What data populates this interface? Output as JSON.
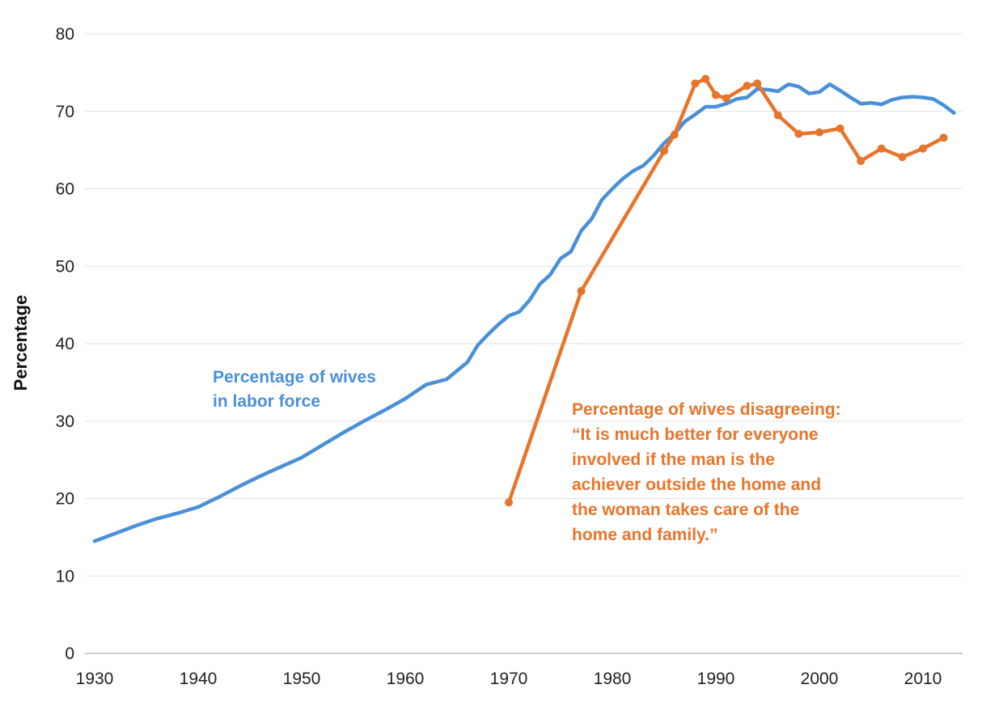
{
  "chart_data": {
    "type": "line",
    "title": "",
    "xlabel": "",
    "ylabel": "Percentage",
    "xlim": [
      1930,
      2013
    ],
    "ylim": [
      0,
      80
    ],
    "x_ticks": [
      1930,
      1940,
      1950,
      1960,
      1970,
      1980,
      1990,
      2000,
      2010
    ],
    "y_ticks": [
      0,
      10,
      20,
      30,
      40,
      50,
      60,
      70,
      80
    ],
    "grid": "horizontal",
    "legend": "none",
    "series": [
      {
        "color": "#4a90d9",
        "markers": false,
        "x": [
          1930,
          1932,
          1934,
          1936,
          1938,
          1940,
          1942,
          1944,
          1946,
          1948,
          1950,
          1952,
          1954,
          1956,
          1958,
          1960,
          1962,
          1964,
          1965,
          1966,
          1967,
          1968,
          1969,
          1970,
          1971,
          1972,
          1973,
          1974,
          1975,
          1976,
          1977,
          1978,
          1979,
          1980,
          1981,
          1982,
          1983,
          1984,
          1985,
          1986,
          1987,
          1988,
          1989,
          1990,
          1991,
          1992,
          1993,
          1994,
          1995,
          1996,
          1997,
          1998,
          1999,
          2000,
          2001,
          2002,
          2003,
          2004,
          2005,
          2006,
          2007,
          2008,
          2009,
          2010,
          2011,
          2012,
          2013
        ],
        "y": [
          14.5,
          15.5,
          16.5,
          17.4,
          18.1,
          18.9,
          20.2,
          21.6,
          22.9,
          24.1,
          25.3,
          26.9,
          28.5,
          30.0,
          31.4,
          32.9,
          34.7,
          35.4,
          36.5,
          37.6,
          39.8,
          41.2,
          42.5,
          43.6,
          44.1,
          45.6,
          47.7,
          48.9,
          51.0,
          51.9,
          54.6,
          56.1,
          58.6,
          60.0,
          61.3,
          62.3,
          63.0,
          64.3,
          65.9,
          67.1,
          68.7,
          69.6,
          70.6,
          70.6,
          71.0,
          71.6,
          71.8,
          72.9,
          72.8,
          72.6,
          73.5,
          73.2,
          72.3,
          72.5,
          73.5,
          72.7,
          71.8,
          71.0,
          71.1,
          70.9,
          71.5,
          71.8,
          71.9,
          71.8,
          71.6,
          70.8,
          69.8
        ]
      },
      {
        "color": "#e8742b",
        "markers": true,
        "x": [
          1970,
          1977,
          1985,
          1986,
          1988,
          1989,
          1990,
          1991,
          1993,
          1994,
          1996,
          1998,
          2000,
          2002,
          2004,
          2006,
          2008,
          2010,
          2012
        ],
        "y": [
          19.5,
          46.8,
          64.9,
          67.0,
          73.6,
          74.2,
          72.1,
          71.7,
          73.3,
          73.6,
          69.5,
          67.1,
          67.3,
          67.8,
          63.6,
          65.2,
          64.1,
          65.2,
          66.6
        ]
      }
    ],
    "annotations": [
      {
        "color": "#4a90d9",
        "lines": [
          "Percentage of wives",
          "in labor force"
        ]
      },
      {
        "color": "#e8742b",
        "lines": [
          "Percentage of wives disagreeing:",
          "“It is much better for everyone",
          "involved if the man is the",
          "achiever outside the home and",
          "the woman takes care of the",
          "home and family.”"
        ]
      }
    ]
  }
}
